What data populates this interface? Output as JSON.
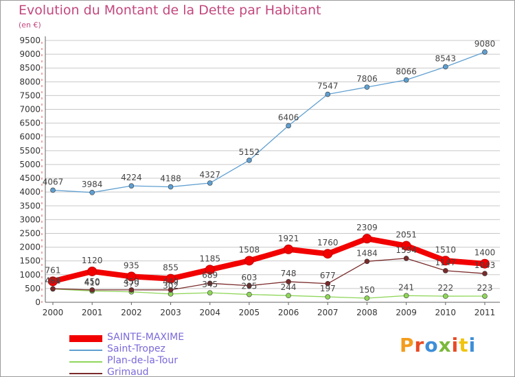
{
  "title": "Evolution du Montant de la Dette par Habitant",
  "subtitle": "(en €)",
  "logo": {
    "text": "Proxiti",
    "letters": [
      "P",
      "r",
      "o",
      "x",
      "i",
      "t",
      "i"
    ],
    "letter_colors": [
      "#f39c1e",
      "#e84b24",
      "#3d8ed8",
      "#7bb83a",
      "#e84b24",
      "#f1c40f",
      "#3d8ed8"
    ]
  },
  "colors": {
    "title": "#c3477e",
    "legend_text": "#7b69d9",
    "axis": "#606060",
    "grid": "#c8c8c8",
    "tick_marks_left": "#e05050"
  },
  "chart_data": {
    "type": "line",
    "x": [
      "2000",
      "2001",
      "2002",
      "2003",
      "2004",
      "2005",
      "2006",
      "2007",
      "2008",
      "2009",
      "2010",
      "2011"
    ],
    "ylim": [
      0,
      9500
    ],
    "yticks": [
      0,
      500,
      1000,
      1500,
      2000,
      2500,
      3000,
      3500,
      4000,
      4500,
      5000,
      5500,
      6000,
      6500,
      7000,
      7500,
      8000,
      8500,
      9000,
      9500
    ],
    "grid": "horizontal",
    "legend_position": "bottom-left",
    "series": [
      {
        "name": "SAINTE-MAXIME",
        "color": "#f20000",
        "style": "thick",
        "values": [
          761,
          1120,
          935,
          855,
          1185,
          1508,
          1921,
          1760,
          2309,
          2051,
          1510,
          1400
        ],
        "labels": [
          "761",
          "1120",
          "935",
          "855",
          "1185",
          "1508",
          "1921",
          "1760",
          "2309",
          "2051",
          "1510",
          "1400"
        ]
      },
      {
        "name": "Saint-Tropez",
        "color": "#5f9fd1",
        "style": "thin",
        "values": [
          4067,
          3984,
          4224,
          4188,
          4327,
          5152,
          6406,
          7547,
          7806,
          8066,
          8543,
          9080
        ],
        "labels": [
          "4067",
          "3984",
          "4224",
          "4188",
          "4327",
          "5152",
          "6406",
          "7547",
          "7806",
          "8066",
          "8543",
          "9080"
        ]
      },
      {
        "name": "Plan-de-la-Tour",
        "color": "#8fd65a",
        "style": "thin",
        "values": [
          484,
          410,
          379,
          302,
          345,
          285,
          244,
          197,
          150,
          241,
          222,
          223
        ],
        "labels": [
          "484",
          "410",
          "379",
          "302",
          "345",
          "285",
          "244",
          "197",
          "150",
          "241",
          "222",
          "223"
        ]
      },
      {
        "name": "Grimaud",
        "color": "#7a2a2a",
        "style": "thin",
        "values": [
          491,
          450,
          450,
          449,
          689,
          603,
          748,
          677,
          1484,
          1594,
          1147,
          1043
        ],
        "labels": [
          "491",
          "450",
          "450",
          "449",
          "689",
          "603",
          "748",
          "677",
          "1484",
          "1594",
          "1147",
          "1043"
        ]
      }
    ]
  }
}
